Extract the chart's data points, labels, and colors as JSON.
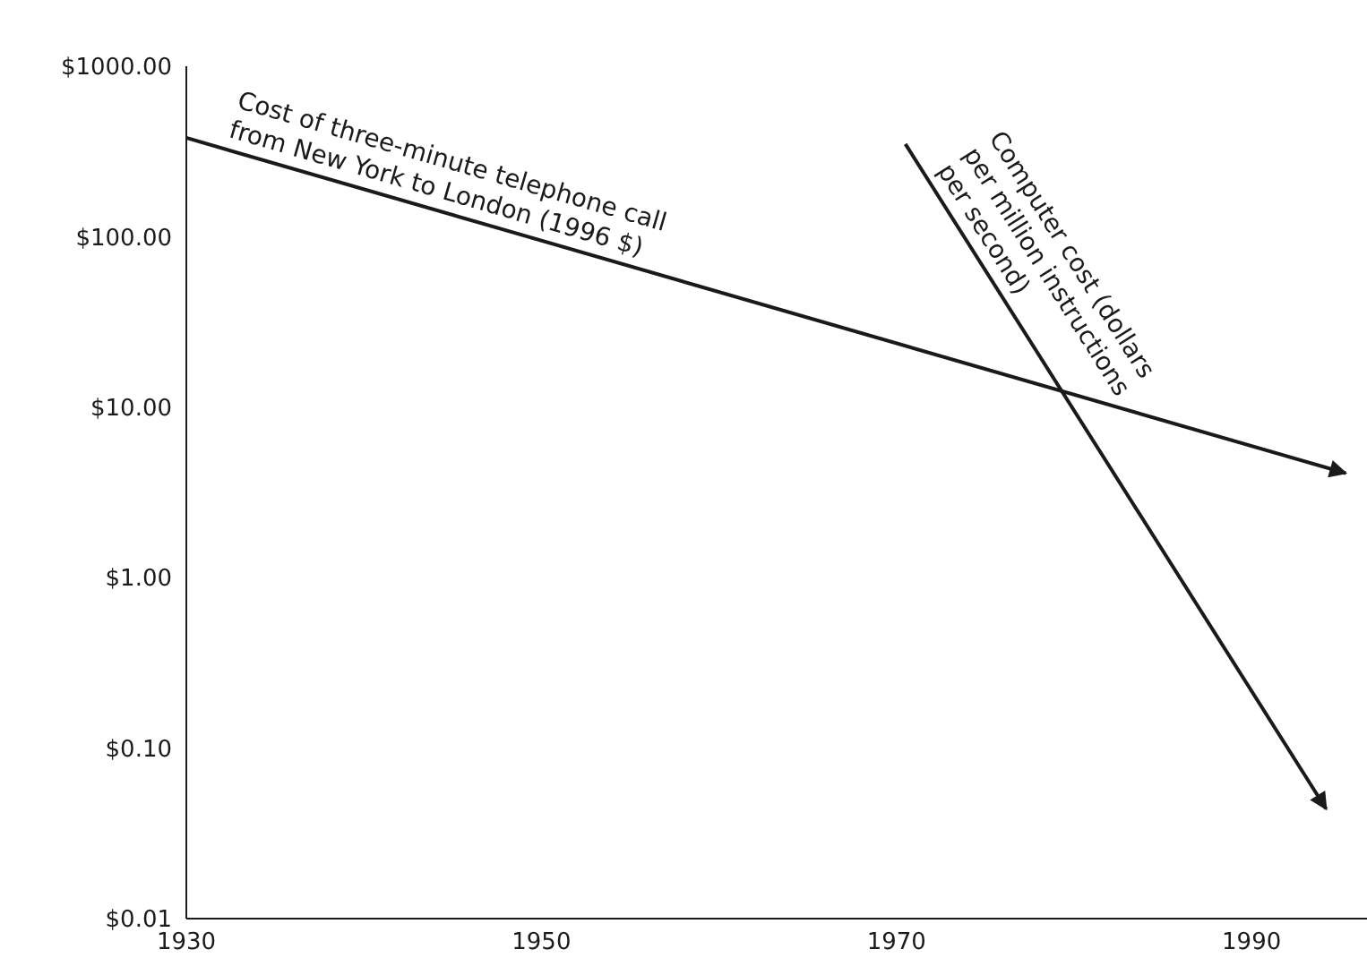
{
  "chart_data": {
    "type": "line",
    "log": "y",
    "xlim": [
      1930,
      1996.5
    ],
    "xticks": [
      1930,
      1950,
      1970,
      1990
    ],
    "ylim": [
      0.01,
      1000
    ],
    "yticks": [
      {
        "value": 0.01,
        "label": "$0.01"
      },
      {
        "value": 0.1,
        "label": "$0.10"
      },
      {
        "value": 1,
        "label": "$1.00"
      },
      {
        "value": 10,
        "label": "$10.00"
      },
      {
        "value": 100,
        "label": "$100.00"
      },
      {
        "value": 1000,
        "label": "$1000.00"
      }
    ],
    "series": [
      {
        "name": "Cost of three-minute telephone call\nfrom New York to London (1996 $)",
        "color": "#1a1a1a",
        "x": [
          1930,
          1995.3
        ],
        "values": [
          380,
          4.1
        ]
      },
      {
        "name": "Computer cost (dollars\nper million instructions\nper second)",
        "color": "#1a1a1a",
        "x": [
          1970.5,
          1994.2
        ],
        "values": [
          350,
          0.044
        ]
      }
    ]
  }
}
